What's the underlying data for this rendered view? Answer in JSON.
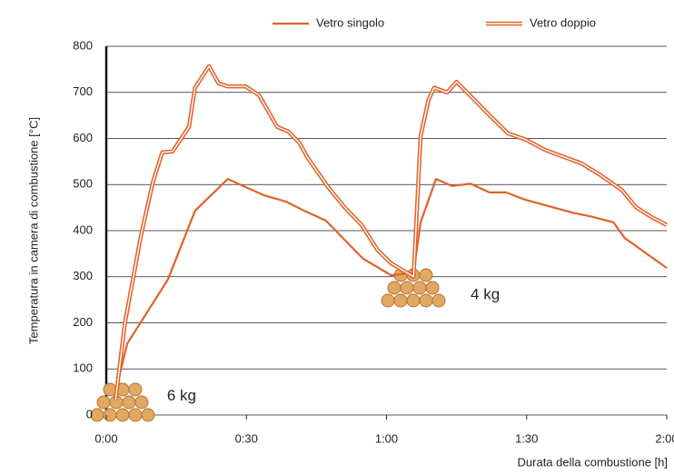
{
  "chart_data": {
    "type": "line",
    "xlabel": "Durata della combustione [h]",
    "ylabel": "Temperatura in camera di combustione [°C]",
    "xlim": [
      0,
      120
    ],
    "ylim": [
      0,
      800
    ],
    "xticks": [
      {
        "value": 0,
        "label": "0:00"
      },
      {
        "value": 30,
        "label": "0:30"
      },
      {
        "value": 60,
        "label": "1:00"
      },
      {
        "value": 90,
        "label": "1:30"
      },
      {
        "value": 120,
        "label": "2:00"
      }
    ],
    "yticks": [
      0,
      100,
      200,
      300,
      400,
      500,
      600,
      700,
      800
    ],
    "grid": true,
    "annotations": [
      {
        "text": "6 kg",
        "x": 13,
        "y": 40
      },
      {
        "text": "4 kg",
        "x": 78,
        "y": 260
      }
    ],
    "series": [
      {
        "name": "Vetro singolo",
        "color": "#e0622a",
        "style": "single",
        "x": [
          2.5,
          4.5,
          13.2,
          19,
          26,
          33.7,
          38.5,
          42.4,
          47,
          55,
          61,
          65.8,
          67.3,
          70.6,
          74,
          78,
          82,
          85.6,
          89.7,
          99.8,
          103.7,
          108.6,
          111,
          120
        ],
        "values": [
          73,
          155,
          294,
          443,
          512,
          477,
          463,
          443,
          422,
          339,
          303,
          309,
          418,
          512,
          497,
          502,
          483,
          483,
          467,
          439,
          431,
          418,
          384,
          319
        ]
      },
      {
        "name": "Vetro doppio",
        "color": "#e0622a",
        "style": "double",
        "x": [
          2,
          4,
          7.4,
          10,
          12,
          14.2,
          17.7,
          19,
          22,
          24,
          26,
          29.8,
          32.7,
          36.6,
          39,
          41.4,
          43,
          47.3,
          51,
          54.7,
          58,
          61,
          65.8,
          67.3,
          69,
          70.2,
          73,
          75,
          78.4,
          81.7,
          86,
          89.7,
          94,
          101.7,
          105.6,
          110.5,
          113.4,
          117,
          120
        ],
        "values": [
          33,
          200,
          388,
          506,
          570,
          572,
          625,
          710,
          757,
          720,
          713,
          713,
          694,
          625,
          615,
          590,
          560,
          497,
          451,
          412,
          359,
          329,
          300,
          605,
          684,
          710,
          700,
          723,
          688,
          654,
          611,
          598,
          575,
          546,
          522,
          487,
          451,
          428,
          412
        ]
      }
    ]
  }
}
